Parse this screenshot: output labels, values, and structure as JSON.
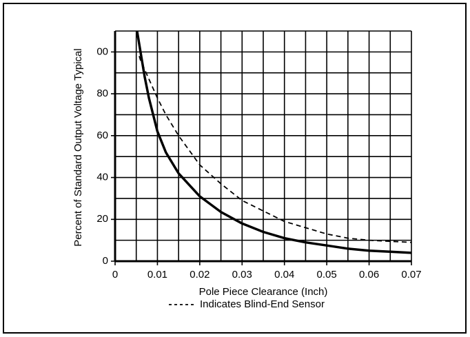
{
  "chart_data": {
    "type": "line",
    "x_label": "Pole Piece Clearance (Inch)",
    "y_label": "Percent of Standard Output Voltage Typical",
    "xlim": [
      0,
      0.07
    ],
    "xticks": [
      0,
      0.01,
      0.02,
      0.03,
      0.04,
      0.05,
      0.06,
      0.07
    ],
    "ylim": [
      0,
      110
    ],
    "yticks": [
      0,
      20,
      40,
      60,
      80,
      {
        "value": 100,
        "label": "00"
      }
    ],
    "grid": true,
    "series": [
      {
        "color": "#000000",
        "dash": false,
        "x": [
          0.0052,
          0.006,
          0.007,
          0.008,
          0.01,
          0.012,
          0.015,
          0.02,
          0.025,
          0.03,
          0.035,
          0.04,
          0.045,
          0.05,
          0.055,
          0.06,
          0.065,
          0.07
        ],
        "values": [
          110,
          100,
          88,
          78,
          62,
          52,
          42,
          31,
          23.5,
          18,
          14,
          11,
          9,
          7.5,
          6,
          5,
          4.5,
          4
        ]
      },
      {
        "name": "Indicates Blind-End Sensor",
        "color": "#000000",
        "dash": true,
        "x": [
          0.0057,
          0.006,
          0.008,
          0.01,
          0.012,
          0.015,
          0.02,
          0.025,
          0.03,
          0.035,
          0.04,
          0.045,
          0.05,
          0.055,
          0.06,
          0.065,
          0.07
        ],
        "values": [
          98,
          96,
          87,
          78,
          70,
          60,
          46,
          37,
          29,
          24,
          19,
          16,
          13,
          11,
          10,
          9.5,
          9
        ]
      }
    ]
  }
}
